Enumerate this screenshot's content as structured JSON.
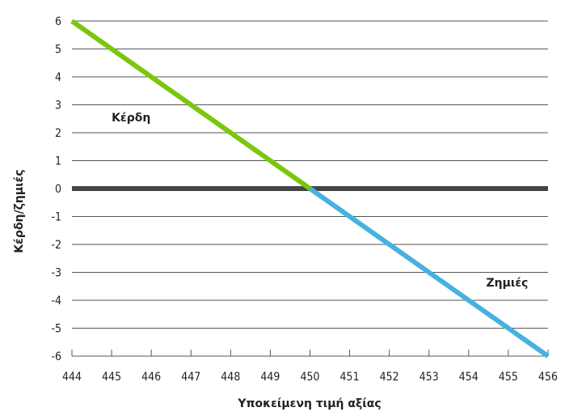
{
  "chart_data": {
    "type": "line",
    "title": "",
    "xlabel": "Υποκείμενη τιμή αξίας",
    "ylabel": "Κέρδη/ζημιές",
    "x": [
      444,
      445,
      446,
      447,
      448,
      449,
      450,
      451,
      452,
      453,
      454,
      455,
      456
    ],
    "y": [
      6,
      5,
      4,
      3,
      2,
      1,
      0,
      -1,
      -2,
      -3,
      -4,
      -5,
      -6
    ],
    "xlim": [
      444,
      456
    ],
    "ylim": [
      -6,
      6
    ],
    "x_ticks": [
      444,
      445,
      446,
      447,
      448,
      449,
      450,
      451,
      452,
      453,
      454,
      455,
      456
    ],
    "y_ticks": [
      6,
      5,
      4,
      3,
      2,
      1,
      0,
      -1,
      -2,
      -3,
      -4,
      -5,
      -6
    ],
    "grid": true,
    "zero_line": true,
    "segments": [
      {
        "from_x": 444,
        "to_x": 450,
        "color": "#7ac70c"
      },
      {
        "from_x": 450,
        "to_x": 456,
        "color": "#45b2e0"
      }
    ],
    "annotations": [
      {
        "text": "Κέρδη",
        "x": 445,
        "y": 2.4
      },
      {
        "text": "Ζημιές",
        "x": 455.5,
        "y": -3.5
      }
    ],
    "colors": {
      "grid": "#555555",
      "zero_line": "#444444",
      "profit": "#7ac70c",
      "loss": "#45b2e0",
      "title": "#1aa3b5"
    }
  }
}
